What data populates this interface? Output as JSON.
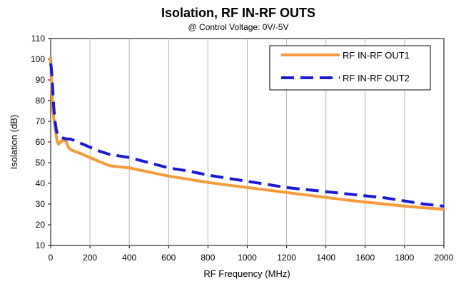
{
  "chart_data": {
    "type": "line",
    "title": "Isolation, RF IN-RF OUTS",
    "subtitle": "@ Control Voltage: 0V/-5V",
    "xlabel": "RF Frequency (MHz)",
    "ylabel": "Isolation (dB)",
    "xlim": [
      0,
      2000
    ],
    "ylim": [
      10,
      110
    ],
    "xticks": [
      "0",
      "200",
      "400",
      "600",
      "800",
      "1000",
      "1200",
      "1400",
      "1600",
      "1800",
      "2000"
    ],
    "yticks": [
      "10",
      "20",
      "30",
      "40",
      "50",
      "60",
      "70",
      "80",
      "90",
      "100",
      "110"
    ],
    "grid": "vertical",
    "legend_position": "top-right",
    "series": [
      {
        "name": "RF IN-RF OUT1",
        "color": "#F79A3A",
        "style": "solid",
        "x": [
          0,
          5,
          10,
          15,
          20,
          25,
          30,
          35,
          40,
          45,
          50,
          55,
          60,
          65,
          70,
          75,
          80,
          85,
          90,
          100,
          120,
          150,
          200,
          250,
          300,
          350,
          400,
          500,
          600,
          700,
          800,
          900,
          1000,
          1100,
          1200,
          1300,
          1400,
          1500,
          1600,
          1700,
          1800,
          1900,
          2000
        ],
        "y": [
          101,
          88,
          76,
          72,
          69,
          65,
          62,
          60,
          59,
          59.5,
          60,
          60.5,
          60.5,
          61,
          61,
          60.5,
          60,
          58.5,
          57.5,
          56.5,
          55.5,
          54.5,
          52.5,
          50.5,
          48.5,
          48,
          47.5,
          45.5,
          43.5,
          42,
          40.5,
          39.2,
          38,
          36.8,
          35.6,
          34.4,
          33.2,
          32,
          31,
          30,
          29,
          28.2,
          27.5
        ]
      },
      {
        "name": "RF IN-RF OUT2",
        "color": "#1A1AD6",
        "style": "dashed",
        "x": [
          0,
          3,
          6,
          10,
          15,
          20,
          25,
          30,
          40,
          50,
          60,
          80,
          100,
          150,
          200,
          250,
          300,
          400,
          500,
          600,
          700,
          800,
          900,
          1000,
          1100,
          1200,
          1300,
          1400,
          1500,
          1600,
          1700,
          1800,
          1900,
          2000
        ],
        "y": [
          98,
          96,
          92,
          86,
          78,
          72,
          68,
          65,
          63,
          62.5,
          62,
          61.5,
          61.5,
          59.5,
          57.5,
          55.5,
          54,
          52.5,
          50,
          47.5,
          46,
          44,
          42.5,
          41,
          39.5,
          38,
          37,
          36,
          35,
          34,
          33,
          31.5,
          30,
          29
        ]
      }
    ]
  }
}
